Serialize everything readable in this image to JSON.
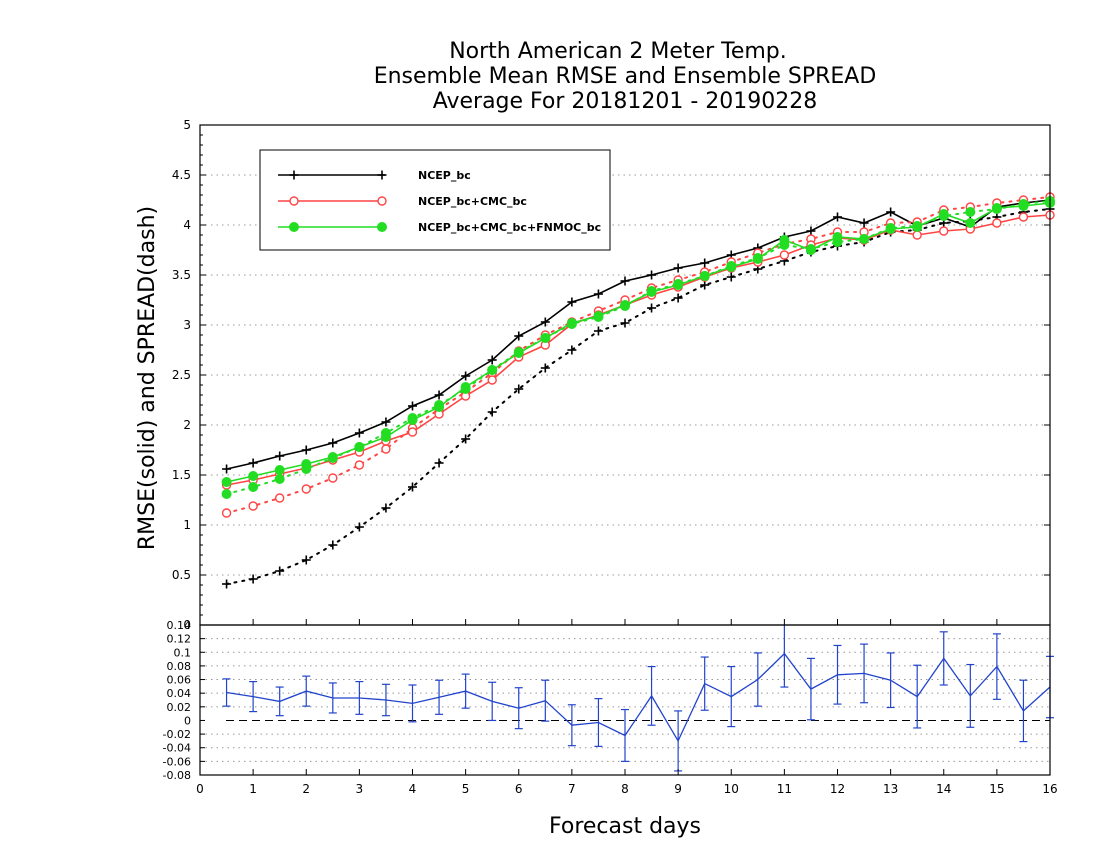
{
  "chart_data": [
    {
      "type": "line",
      "title_lines": [
        "North American 2 Meter Temp.",
        "Ensemble Mean RMSE and Ensemble SPREAD",
        "Average For 20181201 - 20190228"
      ],
      "xlabel": "Forecast days",
      "ylabel": "RMSE(solid) and SPREAD(dash)",
      "xlim": [
        0,
        16
      ],
      "ylim": [
        0,
        5
      ],
      "x_ticks": [
        "0",
        "1",
        "2",
        "3",
        "4",
        "5",
        "6",
        "7",
        "8",
        "9",
        "10",
        "11",
        "12",
        "13",
        "14",
        "15",
        "16"
      ],
      "y_ticks": [
        "0",
        "0.5",
        "1",
        "1.5",
        "2",
        "2.5",
        "3",
        "3.5",
        "4",
        "4.5",
        "5"
      ],
      "grid": "horizontal dotted",
      "legend_position": "top-left",
      "x": [
        0.5,
        1,
        1.5,
        2,
        2.5,
        3,
        3.5,
        4,
        4.5,
        5,
        5.5,
        6,
        6.5,
        7,
        7.5,
        8,
        8.5,
        9,
        9.5,
        10,
        10.5,
        11,
        11.5,
        12,
        12.5,
        13,
        13.5,
        14,
        14.5,
        15,
        15.5,
        16
      ],
      "series": [
        {
          "name": "NCEP_bc",
          "color": "#000000",
          "marker": "plus",
          "rmse": [
            1.56,
            1.62,
            1.69,
            1.75,
            1.82,
            1.92,
            2.03,
            2.19,
            2.3,
            2.49,
            2.65,
            2.89,
            3.03,
            3.23,
            3.31,
            3.44,
            3.5,
            3.57,
            3.62,
            3.7,
            3.77,
            3.88,
            3.94,
            4.08,
            4.02,
            4.13,
            3.99,
            4.07,
            3.98,
            4.18,
            4.22,
            4.25
          ],
          "spread": [
            0.41,
            0.46,
            0.54,
            0.65,
            0.8,
            0.98,
            1.17,
            1.38,
            1.62,
            1.86,
            2.13,
            2.36,
            2.57,
            2.75,
            2.94,
            3.02,
            3.17,
            3.27,
            3.4,
            3.48,
            3.56,
            3.64,
            3.73,
            3.79,
            3.83,
            3.93,
            3.95,
            4.02,
            4.04,
            4.08,
            4.13,
            4.16
          ]
        },
        {
          "name": "NCEP_bc+CMC_bc",
          "color": "#ff4444",
          "marker": "open-circle",
          "rmse": [
            1.4,
            1.45,
            1.51,
            1.57,
            1.65,
            1.73,
            1.84,
            1.93,
            2.11,
            2.29,
            2.45,
            2.68,
            2.8,
            3.01,
            3.1,
            3.2,
            3.3,
            3.38,
            3.48,
            3.57,
            3.63,
            3.7,
            3.8,
            3.87,
            3.85,
            3.95,
            3.9,
            3.94,
            3.96,
            4.02,
            4.08,
            4.1
          ],
          "spread": [
            1.12,
            1.19,
            1.27,
            1.36,
            1.47,
            1.6,
            1.76,
            1.97,
            2.16,
            2.33,
            2.52,
            2.74,
            2.9,
            3.03,
            3.14,
            3.25,
            3.37,
            3.45,
            3.53,
            3.63,
            3.72,
            3.81,
            3.86,
            3.93,
            3.93,
            4.02,
            4.03,
            4.15,
            4.18,
            4.22,
            4.25,
            4.28
          ]
        },
        {
          "name": "NCEP_bc+CMC_bc+FNMOC_bc",
          "color": "#22dd22",
          "marker": "filled-circle",
          "rmse": [
            1.43,
            1.49,
            1.55,
            1.61,
            1.68,
            1.78,
            1.88,
            2.05,
            2.18,
            2.38,
            2.55,
            2.72,
            2.87,
            3.02,
            3.09,
            3.2,
            3.33,
            3.4,
            3.49,
            3.58,
            3.66,
            3.85,
            3.75,
            3.88,
            3.86,
            3.96,
            3.98,
            4.11,
            4.02,
            4.17,
            4.19,
            4.22
          ],
          "spread": [
            1.31,
            1.38,
            1.46,
            1.56,
            1.67,
            1.78,
            1.92,
            2.07,
            2.2,
            2.36,
            2.55,
            2.73,
            2.87,
            3.01,
            3.08,
            3.19,
            3.34,
            3.41,
            3.49,
            3.59,
            3.67,
            3.8,
            3.76,
            3.83,
            3.86,
            3.97,
            3.99,
            4.09,
            4.13,
            4.16,
            4.21,
            4.24
          ]
        }
      ]
    },
    {
      "type": "line",
      "xlim": [
        0,
        16
      ],
      "ylim": [
        -0.08,
        0.14
      ],
      "y_ticks": [
        "0.14",
        "0.12",
        "0.1",
        "0.08",
        "0.06",
        "0.04",
        "0.02",
        "0",
        "-0.02",
        "-0.04",
        "-0.06",
        "-0.08"
      ],
      "grid": "horizontal dotted",
      "zero_line": "dashed",
      "series": [
        {
          "color": "#2244cc",
          "x": [
            0.5,
            1,
            1.5,
            2,
            2.5,
            3,
            3.5,
            4,
            4.5,
            5,
            5.5,
            6,
            6.5,
            7,
            7.5,
            8,
            8.5,
            9,
            9.5,
            10,
            10.5,
            11,
            11.5,
            12,
            12.5,
            13,
            13.5,
            14,
            14.5,
            15,
            15.5,
            16
          ],
          "values": [
            0.041,
            0.035,
            0.028,
            0.043,
            0.033,
            0.033,
            0.03,
            0.025,
            0.034,
            0.043,
            0.028,
            0.018,
            0.029,
            -0.007,
            -0.003,
            -0.022,
            0.036,
            -0.03,
            0.054,
            0.035,
            0.06,
            0.098,
            0.046,
            0.067,
            0.069,
            0.059,
            0.035,
            0.091,
            0.036,
            0.079,
            0.014,
            0.049
          ],
          "error": [
            0.02,
            0.022,
            0.021,
            0.022,
            0.022,
            0.024,
            0.023,
            0.027,
            0.025,
            0.025,
            0.028,
            0.03,
            0.03,
            0.03,
            0.035,
            0.038,
            0.043,
            0.044,
            0.039,
            0.044,
            0.039,
            0.049,
            0.045,
            0.043,
            0.043,
            0.04,
            0.046,
            0.039,
            0.046,
            0.048,
            0.045,
            0.045
          ]
        }
      ]
    }
  ]
}
